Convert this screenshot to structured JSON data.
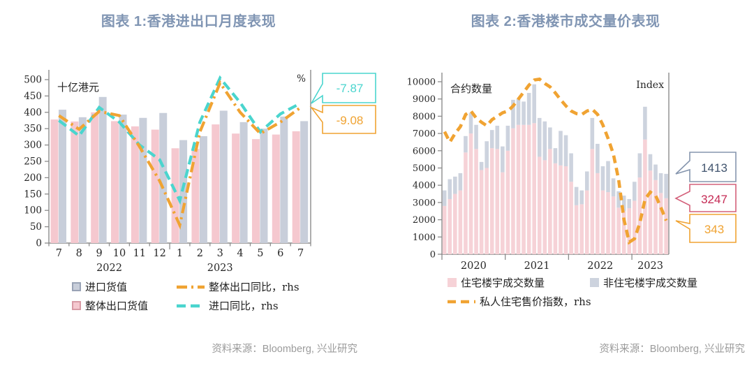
{
  "page": {
    "background": "#FFFFFF"
  },
  "colors": {
    "title": "#8095B3",
    "axis": "#8C8C8C",
    "tick_text": "#262626",
    "source_text": "#9B9B9B",
    "chart1_export_bar": "#F5C8CF",
    "chart1_import_bar": "#C8CEDA",
    "chart1_export_bar_border": "#D89AA5",
    "chart1_import_bar_border": "#99A3B6",
    "chart1_export_line": "#F0A332",
    "chart1_import_line": "#4AD5CE",
    "chart2_residential_bar": "#F6D2D7",
    "chart2_nonresidential_bar": "#CDD3DE",
    "chart2_index_line": "#F0A332",
    "callout_navy_border": "#8696AE",
    "callout_navy_text": "#41546E",
    "callout_crimson_border": "#D4607A",
    "callout_crimson_text": "#C52B55",
    "callout_orange": "#F0A332",
    "callout_cyan": "#4AD5CE"
  },
  "sources": {
    "chart1": "资料来源：Bloomberg, 兴业研究",
    "chart2": "资料来源：Bloomberg, 兴业研究"
  },
  "chart_data": [
    {
      "type": "bar",
      "title": "图表 1:香港进出口月度表现",
      "unit_label": "十亿港元",
      "rhs_unit_label": "%",
      "ylim": [
        0,
        500
      ],
      "ytick_step": 50,
      "categories": [
        "7",
        "8",
        "9",
        "10",
        "11",
        "12",
        "1",
        "2",
        "3",
        "4",
        "5",
        "6",
        "7"
      ],
      "year_labels": [
        "2022",
        "2023"
      ],
      "legend_note": "lines plotted on right-hand axis; only end values labeled",
      "series": [
        {
          "name": "整体出口货值",
          "kind": "bar",
          "values": [
            378,
            372,
            400,
            373,
            357,
            347,
            290,
            288,
            363,
            335,
            318,
            332,
            342
          ]
        },
        {
          "name": "进口货值",
          "kind": "bar",
          "values": [
            408,
            385,
            447,
            393,
            383,
            398,
            315,
            327,
            405,
            370,
            350,
            387,
            373
          ]
        },
        {
          "name": "整体出口同比，rhs",
          "kind": "line",
          "dash": "dashdot",
          "end_label": "-9.08",
          "values_lhs_scale": [
            390,
            348,
            403,
            390,
            295,
            190,
            55,
            340,
            490,
            400,
            335,
            370,
            415
          ]
        },
        {
          "name": "进口同比，rhs",
          "kind": "line",
          "dash": "dash",
          "end_label": "-7.87",
          "values_lhs_scale": [
            375,
            328,
            415,
            370,
            300,
            255,
            130,
            370,
            505,
            430,
            340,
            395,
            428
          ]
        }
      ]
    },
    {
      "type": "bar",
      "title": "图表 2:香港楼市成交量价表现",
      "unit_label": "合约数量",
      "rhs_unit_label": "Index",
      "ylim": [
        0,
        10000
      ],
      "ytick_step": 1000,
      "year_labels": [
        "2020",
        "2021",
        "2022",
        "2023"
      ],
      "months_per_year": [
        12,
        12,
        12,
        7
      ],
      "series": [
        {
          "name": "住宅楼宇成交数量",
          "kind": "bar-stack",
          "end_label": "3247",
          "values": [
            2800,
            3200,
            3500,
            3700,
            5900,
            7000,
            6100,
            4880,
            5000,
            6150,
            6100,
            4750,
            6000,
            7300,
            7500,
            7500,
            7500,
            7600,
            5650,
            5450,
            6100,
            5270,
            5150,
            5100,
            4200,
            2840,
            2900,
            3700,
            6100,
            4700,
            3700,
            3600,
            3350,
            2700,
            2500,
            2670,
            3100,
            4450,
            6650,
            4850,
            4300,
            3550,
            3247
          ]
        },
        {
          "name": "非住宅楼宇成交数量",
          "kind": "bar-stack",
          "end_label": "1413",
          "values": [
            900,
            1150,
            1000,
            1000,
            950,
            1200,
            1400,
            470,
            1550,
            1050,
            1350,
            1500,
            1450,
            1650,
            1500,
            1350,
            1850,
            2250,
            2250,
            2250,
            1250,
            880,
            2000,
            1800,
            1650,
            1060,
            800,
            1100,
            1800,
            1700,
            1400,
            1800,
            1050,
            950,
            900,
            530,
            1100,
            1400,
            1900,
            950,
            900,
            1150,
            1413
          ]
        },
        {
          "name": "私人住宅售价指数，rhs",
          "kind": "line",
          "dash": "dash",
          "end_label": "343",
          "values_lhs_scale": [
            7100,
            6500,
            7000,
            7400,
            8100,
            8300,
            7900,
            7650,
            7450,
            7800,
            8000,
            8200,
            8300,
            8600,
            9000,
            9400,
            9800,
            10100,
            10150,
            9900,
            9700,
            9350,
            8950,
            8600,
            8300,
            8150,
            8100,
            8300,
            8400,
            8100,
            7500,
            6700,
            5800,
            4300,
            2000,
            700,
            900,
            1800,
            3200,
            3600,
            3400,
            2700,
            1950
          ]
        }
      ]
    }
  ]
}
